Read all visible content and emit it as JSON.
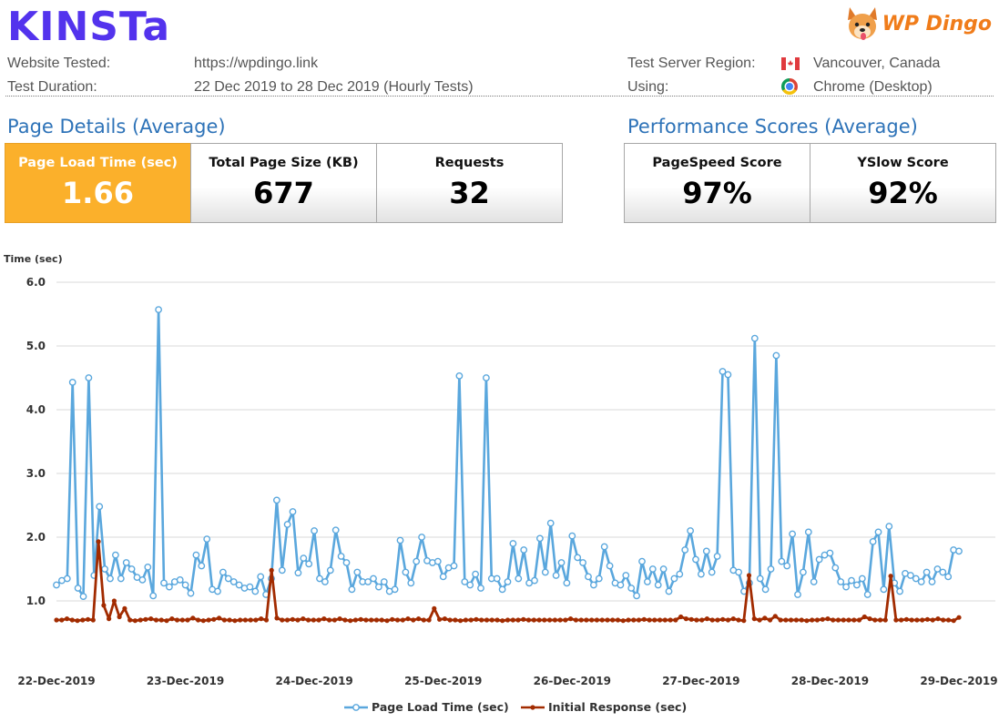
{
  "header": {
    "logo_text": "KINSTa",
    "brand_text": "WP Dingo",
    "website_label": "Website Tested:",
    "website_value": "https://wpdingo.link",
    "duration_label": "Test Duration:",
    "duration_value": "22 Dec 2019 to 28 Dec 2019 (Hourly Tests)",
    "region_label": "Test Server Region:",
    "region_value": "Vancouver, Canada",
    "using_label": "Using:",
    "using_value": "Chrome (Desktop)",
    "flag_icon": "canada-flag-icon",
    "browser_icon": "chrome-icon"
  },
  "page_details": {
    "title": "Page Details (Average)",
    "load_time_label": "Page Load Time (sec)",
    "load_time_value": "1.66",
    "size_label": "Total Page Size (KB)",
    "size_value": "677",
    "requests_label": "Requests",
    "requests_value": "32"
  },
  "performance": {
    "title": "Performance Scores (Average)",
    "pagespeed_label": "PageSpeed Score",
    "pagespeed_value": "97%",
    "yslow_label": "YSlow Score",
    "yslow_value": "92%"
  },
  "colors": {
    "accent": "#fbb02b",
    "logo": "#5333ed",
    "title": "#2e73b8",
    "series_load": "#5aa7dd",
    "series_initial": "#a22b00"
  },
  "chart_data": {
    "type": "line",
    "ylabel": "Time (sec)",
    "ylim": [
      0,
      6
    ],
    "yticks": [
      "6.0",
      "5.0",
      "4.0",
      "3.0",
      "2.0",
      "1.0"
    ],
    "xlim": [
      0,
      7
    ],
    "x_tick_labels": [
      "22-Dec-2019",
      "23-Dec-2019",
      "24-Dec-2019",
      "25-Dec-2019",
      "26-Dec-2019",
      "27-Dec-2019",
      "28-Dec-2019",
      "29-Dec-2019"
    ],
    "grid": true,
    "legend_position": "bottom",
    "series": [
      {
        "name": "Page Load Time (sec)",
        "color": "#5aa7dd",
        "values": [
          1.25,
          1.32,
          1.35,
          4.43,
          1.2,
          1.07,
          4.5,
          1.4,
          2.48,
          1.5,
          1.35,
          1.72,
          1.35,
          1.6,
          1.5,
          1.37,
          1.33,
          1.53,
          1.08,
          5.57,
          1.28,
          1.22,
          1.3,
          1.33,
          1.25,
          1.12,
          1.72,
          1.55,
          1.97,
          1.18,
          1.15,
          1.45,
          1.35,
          1.3,
          1.25,
          1.2,
          1.22,
          1.15,
          1.38,
          1.1,
          1.35,
          2.58,
          1.48,
          2.2,
          2.4,
          1.44,
          1.67,
          1.58,
          2.1,
          1.35,
          1.3,
          1.48,
          2.11,
          1.7,
          1.6,
          1.18,
          1.45,
          1.3,
          1.3,
          1.35,
          1.22,
          1.3,
          1.15,
          1.18,
          1.95,
          1.45,
          1.28,
          1.62,
          2.0,
          1.63,
          1.6,
          1.62,
          1.38,
          1.52,
          1.55,
          4.53,
          1.3,
          1.25,
          1.42,
          1.2,
          4.5,
          1.35,
          1.35,
          1.18,
          1.3,
          1.9,
          1.35,
          1.8,
          1.28,
          1.32,
          1.98,
          1.45,
          2.22,
          1.4,
          1.6,
          1.28,
          2.02,
          1.68,
          1.6,
          1.38,
          1.25,
          1.35,
          1.85,
          1.55,
          1.28,
          1.25,
          1.4,
          1.2,
          1.08,
          1.62,
          1.3,
          1.5,
          1.25,
          1.5,
          1.15,
          1.35,
          1.42,
          1.8,
          2.1,
          1.65,
          1.42,
          1.78,
          1.45,
          1.7,
          4.6,
          4.55,
          1.48,
          1.45,
          1.15,
          1.28,
          5.12,
          1.35,
          1.18,
          1.5,
          4.85,
          1.62,
          1.55,
          2.05,
          1.1,
          1.45,
          2.08,
          1.3,
          1.65,
          1.72,
          1.75,
          1.52,
          1.3,
          1.22,
          1.32,
          1.25,
          1.35,
          1.1,
          1.93,
          2.08,
          1.18,
          2.17,
          1.28,
          1.15,
          1.43,
          1.4,
          1.35,
          1.3,
          1.45,
          1.3,
          1.5,
          1.45,
          1.38,
          1.8,
          1.78
        ]
      },
      {
        "name": "Initial Response (sec)",
        "color": "#a22b00",
        "values": [
          0.7,
          0.7,
          0.72,
          0.7,
          0.69,
          0.7,
          0.71,
          0.7,
          1.93,
          0.93,
          0.72,
          1.0,
          0.75,
          0.88,
          0.7,
          0.69,
          0.7,
          0.71,
          0.72,
          0.7,
          0.7,
          0.69,
          0.72,
          0.7,
          0.7,
          0.7,
          0.73,
          0.7,
          0.69,
          0.7,
          0.71,
          0.73,
          0.7,
          0.7,
          0.69,
          0.7,
          0.7,
          0.7,
          0.7,
          0.72,
          0.7,
          1.48,
          0.73,
          0.7,
          0.7,
          0.71,
          0.7,
          0.72,
          0.7,
          0.7,
          0.7,
          0.72,
          0.7,
          0.7,
          0.72,
          0.7,
          0.69,
          0.7,
          0.71,
          0.7,
          0.7,
          0.7,
          0.7,
          0.69,
          0.71,
          0.7,
          0.7,
          0.72,
          0.7,
          0.72,
          0.7,
          0.7,
          0.88,
          0.71,
          0.72,
          0.7,
          0.7,
          0.69,
          0.7,
          0.7,
          0.71,
          0.7,
          0.7,
          0.7,
          0.7,
          0.69,
          0.7,
          0.7,
          0.7,
          0.71,
          0.7,
          0.7,
          0.7,
          0.7,
          0.7,
          0.7,
          0.7,
          0.7,
          0.72,
          0.7,
          0.7,
          0.7,
          0.7,
          0.7,
          0.7,
          0.7,
          0.7,
          0.7,
          0.69,
          0.7,
          0.7,
          0.7,
          0.71,
          0.7,
          0.7,
          0.7,
          0.7,
          0.7,
          0.7,
          0.75,
          0.72,
          0.71,
          0.7,
          0.7,
          0.72,
          0.7,
          0.7,
          0.71,
          0.7,
          0.72,
          0.7,
          0.69,
          1.4,
          0.72,
          0.7,
          0.73,
          0.7,
          0.76,
          0.7,
          0.7,
          0.7,
          0.7,
          0.7,
          0.69,
          0.7,
          0.7,
          0.71,
          0.72,
          0.7,
          0.7,
          0.7,
          0.7,
          0.7,
          0.7,
          0.75,
          0.72,
          0.7,
          0.7,
          0.7,
          1.39,
          0.7,
          0.7,
          0.71,
          0.7,
          0.7,
          0.7,
          0.71,
          0.7,
          0.72,
          0.7,
          0.7,
          0.69,
          0.74
        ]
      }
    ]
  }
}
